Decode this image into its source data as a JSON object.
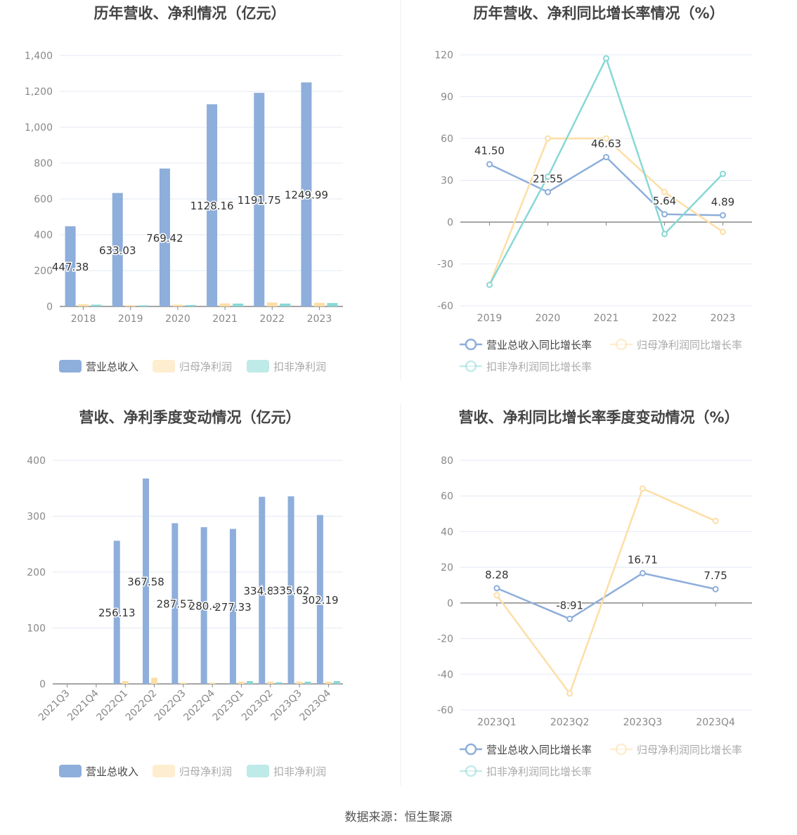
{
  "source": "数据来源：恒生聚源",
  "colors": {
    "revenue": "#8eaedb",
    "net_profit": "#fddea6",
    "deducted_profit": "#88d8d6",
    "grid": "#e3e8f3",
    "axis": "#888"
  },
  "chart_data": [
    {
      "type": "bar",
      "title": "历年营收、净利情况（亿元）",
      "categories": [
        "2018",
        "2019",
        "2020",
        "2021",
        "2022",
        "2023"
      ],
      "ylim": [
        0,
        1400
      ],
      "yticks": [
        "0",
        "200",
        "400",
        "600",
        "800",
        "1,000",
        "1,200",
        "1,400"
      ],
      "legend_position": "bottom",
      "series": [
        {
          "name": "营业总收入",
          "key": "revenue",
          "values": [
            447.38,
            633.03,
            769.42,
            1128.16,
            1191.75,
            1249.99
          ],
          "labels": [
            "447.38",
            "633.03",
            "769.42",
            "1128.16",
            "1191.75",
            "1249.99"
          ]
        },
        {
          "name": "归母净利润",
          "key": "net_profit",
          "values": [
            12,
            7,
            10,
            17,
            22,
            20
          ]
        },
        {
          "name": "扣非净利润",
          "key": "deducted_profit",
          "values": [
            10,
            6,
            8,
            16,
            16,
            19
          ]
        }
      ]
    },
    {
      "type": "line",
      "title": "历年营收、净利同比增长率情况（%）",
      "categories": [
        "2019",
        "2020",
        "2021",
        "2022",
        "2023"
      ],
      "ylim": [
        -60,
        120
      ],
      "yticks": [
        "-60",
        "-30",
        "0",
        "30",
        "60",
        "90",
        "120"
      ],
      "legend_position": "bottom",
      "series": [
        {
          "name": "营业总收入同比增长率",
          "key": "revenue",
          "values": [
            41.5,
            21.55,
            46.63,
            5.64,
            4.89
          ],
          "labels": [
            "41.50",
            "21.55",
            "46.63",
            "5.64",
            "4.89"
          ]
        },
        {
          "name": "归母净利润同比增长率",
          "key": "net_profit",
          "values": [
            -45,
            60,
            60,
            21.6,
            -7
          ]
        },
        {
          "name": "扣非净利润同比增长率",
          "key": "deducted_profit",
          "values": [
            -45,
            32.6,
            117.5,
            -8.5,
            34.6
          ]
        }
      ]
    },
    {
      "type": "bar",
      "title": "营收、净利季度变动情况（亿元）",
      "categories": [
        "2021Q3",
        "2021Q4",
        "2022Q1",
        "2022Q2",
        "2022Q3",
        "2022Q4",
        "2023Q1",
        "2023Q2",
        "2023Q3",
        "2023Q4"
      ],
      "ylim": [
        0,
        400
      ],
      "yticks": [
        "0",
        "100",
        "200",
        "300",
        "400"
      ],
      "legend_position": "bottom",
      "series": [
        {
          "name": "营业总收入",
          "key": "revenue",
          "values": [
            null,
            null,
            256.13,
            367.58,
            287.57,
            280.4,
            277.33,
            334.83,
            335.62,
            302.19
          ],
          "labels": [
            null,
            null,
            "256.13",
            "367.58",
            "287.57",
            "280.4",
            "277.33",
            "334.83",
            "335.62",
            "302.19"
          ]
        },
        {
          "name": "归母净利润",
          "key": "net_profit",
          "values": [
            null,
            null,
            5,
            11,
            2,
            2,
            4,
            4,
            4,
            4
          ]
        },
        {
          "name": "扣非净利润",
          "key": "deducted_profit",
          "values": [
            null,
            null,
            null,
            null,
            null,
            null,
            5,
            3,
            4,
            5
          ]
        }
      ]
    },
    {
      "type": "line",
      "title": "营收、净利同比增长率季度变动情况（%）",
      "categories": [
        "2023Q1",
        "2023Q2",
        "2023Q3",
        "2023Q4"
      ],
      "ylim": [
        -60,
        80
      ],
      "yticks": [
        "-60",
        "-40",
        "-20",
        "0",
        "20",
        "40",
        "60",
        "80"
      ],
      "legend_position": "bottom",
      "series": [
        {
          "name": "营业总收入同比增长率",
          "key": "revenue",
          "values": [
            8.28,
            -8.91,
            16.71,
            7.75
          ],
          "labels": [
            "8.28",
            "-8.91",
            "16.71",
            "7.75"
          ]
        },
        {
          "name": "归母净利润同比增长率",
          "key": "net_profit",
          "values": [
            4.3,
            -50.8,
            64.2,
            46
          ]
        },
        {
          "name": "扣非净利润同比增长率",
          "key": "deducted_profit",
          "values": [
            null,
            null,
            null,
            null
          ]
        }
      ]
    }
  ]
}
